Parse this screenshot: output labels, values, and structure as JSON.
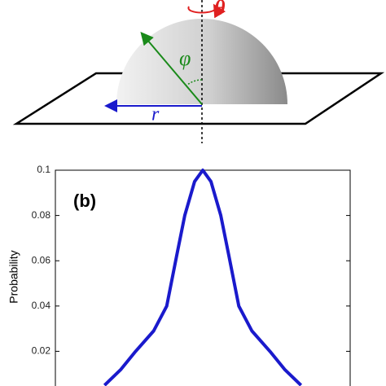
{
  "diagram": {
    "theta": "θ",
    "phi": "φ",
    "r": "r"
  },
  "chart_data": {
    "type": "line",
    "annotation": "(b)",
    "ylabel": "Probability",
    "x": [
      -60,
      -50,
      -41,
      -30,
      -22,
      -16,
      -11,
      -5,
      0,
      5,
      11,
      16,
      22,
      30,
      41,
      50,
      60
    ],
    "series": [
      {
        "name": "Probability",
        "color": "#1a1acc",
        "values": [
          0.005,
          0.012,
          0.02,
          0.029,
          0.04,
          0.062,
          0.08,
          0.095,
          0.1,
          0.095,
          0.08,
          0.062,
          0.04,
          0.029,
          0.02,
          0.012,
          0.005
        ]
      }
    ],
    "xlim": [
      -90,
      90
    ],
    "ylim": [
      0,
      0.1
    ],
    "yticks": [
      0.02,
      0.04,
      0.06,
      0.08,
      0.1
    ]
  }
}
